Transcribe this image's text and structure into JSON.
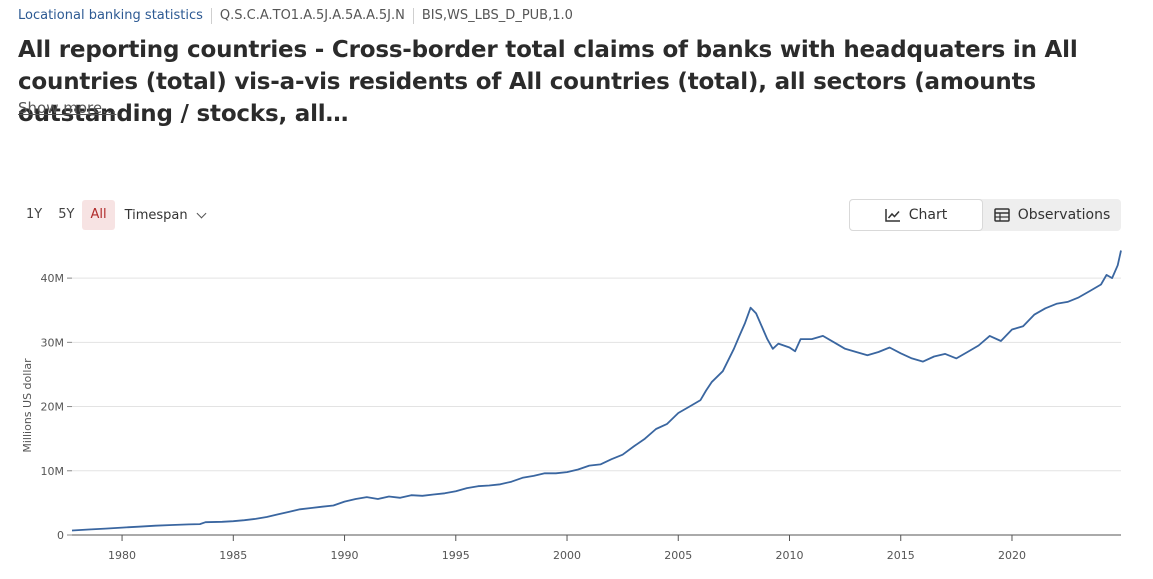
{
  "breadcrumb": {
    "dataflow": "Locational banking statistics",
    "series_key": "Q.S.C.A.TO1.A.5J.A.5A.A.5J.N",
    "dataflow_id": "BIS,WS_LBS_D_PUB,1.0"
  },
  "title": "All reporting countries - Cross-border total claims of banks with headquaters in All countries (total) vis-a-vis residents of All countries (total), all sectors (amounts outstanding / stocks, all…",
  "show_more": "Show more...",
  "range_buttons": {
    "one_year": "1Y",
    "five_year": "5Y",
    "all": "All",
    "active": "All"
  },
  "timespan": {
    "label": "Timespan",
    "icon": "chevron-down-icon"
  },
  "view_toggle": {
    "chart": {
      "label": "Chart",
      "icon": "line-chart-icon"
    },
    "observations": {
      "label": "Observations",
      "icon": "table-icon"
    },
    "active": "chart"
  },
  "colors": {
    "line": "#3a66a0",
    "accent": "#b02a2a",
    "active_bg": "#f7e3e3",
    "grid": "#e3e3e3"
  },
  "chart_data": {
    "type": "line",
    "title": "",
    "xlabel": "",
    "ylabel": "Millions US dollar",
    "xlim": [
      1977.75,
      2024.9
    ],
    "ylim": [
      0,
      45000000
    ],
    "y_ticks": [
      0,
      10000000,
      20000000,
      30000000,
      40000000
    ],
    "y_tick_labels": [
      "0",
      "10M",
      "20M",
      "30M",
      "40M"
    ],
    "x_ticks": [
      1980,
      1985,
      1990,
      1995,
      2000,
      2005,
      2010,
      2015,
      2020
    ],
    "x_tick_labels": [
      "1980",
      "1985",
      "1990",
      "1995",
      "2000",
      "2005",
      "2010",
      "2015",
      "2020"
    ],
    "grid": true,
    "legend": "none",
    "series": [
      {
        "x": [
          1977.75,
          1978.5,
          1979.25,
          1980,
          1980.75,
          1981.5,
          1982.25,
          1983,
          1983.5,
          1983.75,
          1984.5,
          1985,
          1985.5,
          1986,
          1986.5,
          1987,
          1987.5,
          1988,
          1988.5,
          1989,
          1989.5,
          1990,
          1990.5,
          1991,
          1991.5,
          1992,
          1992.5,
          1993,
          1993.5,
          1994,
          1994.5,
          1995,
          1995.5,
          1996,
          1996.5,
          1997,
          1997.5,
          1998,
          1998.5,
          1999,
          1999.5,
          2000,
          2000.5,
          2001,
          2001.5,
          2002,
          2002.5,
          2003,
          2003.5,
          2004,
          2004.5,
          2005,
          2005.5,
          2006,
          2006.25,
          2006.5,
          2007,
          2007.5,
          2007.75,
          2008,
          2008.25,
          2008.5,
          2009,
          2009.25,
          2009.5,
          2010,
          2010.25,
          2010.5,
          2011,
          2011.5,
          2012,
          2012.5,
          2013,
          2013.5,
          2014,
          2014.5,
          2015,
          2015.5,
          2016,
          2016.5,
          2017,
          2017.5,
          2018,
          2018.5,
          2019,
          2019.5,
          2020,
          2020.5,
          2021,
          2021.5,
          2022,
          2022.5,
          2023,
          2023.5,
          2024,
          2024.25,
          2024.5,
          2024.75,
          2024.9
        ],
        "y": [
          700000,
          850000,
          1000000,
          1150000,
          1300000,
          1450000,
          1550000,
          1650000,
          1700000,
          2000000,
          2050000,
          2150000,
          2300000,
          2500000,
          2800000,
          3200000,
          3600000,
          4000000,
          4200000,
          4400000,
          4600000,
          5200000,
          5600000,
          5900000,
          5600000,
          6000000,
          5800000,
          6200000,
          6100000,
          6300000,
          6500000,
          6800000,
          7300000,
          7600000,
          7700000,
          7900000,
          8300000,
          8900000,
          9200000,
          9600000,
          9600000,
          9800000,
          10200000,
          10800000,
          11000000,
          11800000,
          12500000,
          13800000,
          15000000,
          16500000,
          17300000,
          19000000,
          20000000,
          21000000,
          22500000,
          23800000,
          25500000,
          29000000,
          31000000,
          33000000,
          35400000,
          34500000,
          30500000,
          29000000,
          29800000,
          29200000,
          28600000,
          30500000,
          30500000,
          31000000,
          30000000,
          29000000,
          28500000,
          28000000,
          28500000,
          29200000,
          28300000,
          27500000,
          27000000,
          27800000,
          28200000,
          27500000,
          28500000,
          29500000,
          31000000,
          30200000,
          32000000,
          32500000,
          34300000,
          35300000,
          36000000,
          36300000,
          37000000,
          38000000,
          39000000,
          40500000,
          40000000,
          42000000,
          44300000
        ]
      }
    ]
  }
}
